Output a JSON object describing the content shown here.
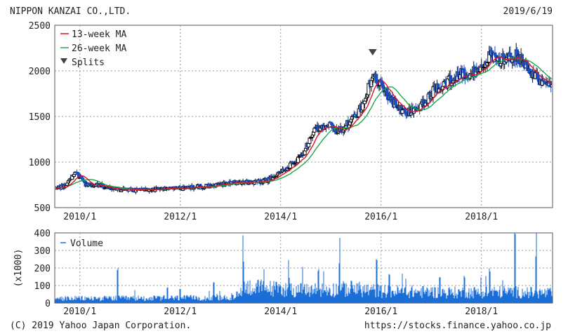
{
  "header": {
    "company": "NIPPON KANZAI CO.,LTD.",
    "date": "2019/6/19"
  },
  "footer": {
    "copyright": "(C) 2019 Yahoo Japan Corporation.",
    "url": "https://stocks.finance.yahoo.co.jp"
  },
  "colors": {
    "up": "#111111",
    "down": "#1a4fc4",
    "ma13": "#e0141e",
    "ma26": "#1aa84a",
    "volume": "#1a6ed8",
    "grid": "#999999",
    "split_marker": "#444444"
  },
  "chart_data": [
    {
      "type": "candlestick",
      "legend": {
        "placement": "top-left",
        "items": [
          "13-week MA",
          "26-week MA",
          "Splits"
        ]
      },
      "x_ticks": [
        "2010/1",
        "2012/1",
        "2014/1",
        "2016/1",
        "2018/1"
      ],
      "y_ticks": [
        "500",
        "1000",
        "1500",
        "2000",
        "2500"
      ],
      "ylim": [
        500,
        2500
      ],
      "xlim": [
        "2009/7",
        "2019/6"
      ],
      "grid": true,
      "price_path": [
        [
          "2009/7",
          700
        ],
        [
          "2009/10",
          760
        ],
        [
          "2009/12",
          900
        ],
        [
          "2010/2",
          760
        ],
        [
          "2010/6",
          740
        ],
        [
          "2010/10",
          700
        ],
        [
          "2011/1",
          690
        ],
        [
          "2011/6",
          700
        ],
        [
          "2012/1",
          710
        ],
        [
          "2012/6",
          730
        ],
        [
          "2013/1",
          770
        ],
        [
          "2013/6",
          780
        ],
        [
          "2013/10",
          800
        ],
        [
          "2014/1",
          900
        ],
        [
          "2014/6",
          1050
        ],
        [
          "2014/9",
          1350
        ],
        [
          "2014/12",
          1420
        ],
        [
          "2015/3",
          1330
        ],
        [
          "2015/6",
          1450
        ],
        [
          "2015/9",
          1650
        ],
        [
          "2015/11",
          1980
        ],
        [
          "2016/1",
          1850
        ],
        [
          "2016/4",
          1650
        ],
        [
          "2016/7",
          1530
        ],
        [
          "2016/10",
          1600
        ],
        [
          "2017/1",
          1750
        ],
        [
          "2017/4",
          1850
        ],
        [
          "2017/7",
          1950
        ],
        [
          "2017/12",
          2000
        ],
        [
          "2018/3",
          2150
        ],
        [
          "2018/6",
          2120
        ],
        [
          "2018/9",
          2180
        ],
        [
          "2018/12",
          2050
        ],
        [
          "2019/3",
          1880
        ],
        [
          "2019/6",
          1830
        ]
      ],
      "splits": [
        "2015/11"
      ]
    },
    {
      "type": "bar",
      "legend": {
        "placement": "top-left",
        "items": [
          "Volume"
        ]
      },
      "ylabel": "(x1000)",
      "x_ticks": [
        "2010/1",
        "2012/1",
        "2014/1",
        "2016/1",
        "2018/1"
      ],
      "y_ticks": [
        "0",
        "100",
        "200",
        "300",
        "400"
      ],
      "ylim": [
        0,
        400
      ],
      "grid": true,
      "baseline_volume": [
        [
          "2009/7",
          30
        ],
        [
          "2013/2",
          35
        ],
        [
          "2013/4",
          110
        ],
        [
          "2014/6",
          85
        ],
        [
          "2015/6",
          95
        ],
        [
          "2016/1",
          80
        ],
        [
          "2017/6",
          70
        ],
        [
          "2018/6",
          75
        ],
        [
          "2019/6",
          65
        ]
      ],
      "spikes": [
        [
          "2010/10",
          210
        ],
        [
          "2011/10",
          100
        ],
        [
          "2012/1",
          90
        ],
        [
          "2012/9",
          120
        ],
        [
          "2013/4",
          240
        ],
        [
          "2014/3",
          160
        ],
        [
          "2014/10",
          210
        ],
        [
          "2015/3",
          230
        ],
        [
          "2015/12",
          260
        ],
        [
          "2016/3",
          170
        ],
        [
          "2017/3",
          150
        ],
        [
          "2017/9",
          170
        ],
        [
          "2018/3",
          200
        ],
        [
          "2018/9",
          400
        ],
        [
          "2019/2",
          270
        ]
      ]
    }
  ]
}
